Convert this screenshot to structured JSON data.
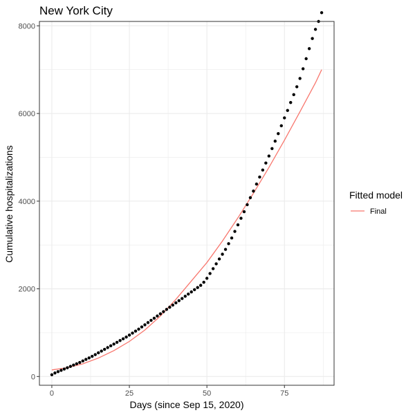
{
  "chart_data": {
    "type": "scatter",
    "title": "New York City",
    "xlabel": "Days (since Sep 15, 2020)",
    "ylabel": "Cumulative hospitalizations",
    "xlim": [
      -4,
      91
    ],
    "ylim": [
      -200,
      8100
    ],
    "x_ticks": [
      0,
      25,
      50,
      75
    ],
    "y_ticks": [
      0,
      2000,
      4000,
      6000,
      8000
    ],
    "grid": true,
    "legend": {
      "title": "Fitted model",
      "placement": "right",
      "entries": [
        {
          "label": "Final",
          "color": "#F8766D"
        }
      ]
    },
    "colors": {
      "points": "#000000",
      "fit": "#F8766D",
      "panel_border": "#333333",
      "grid": "#ebebeb"
    },
    "series": [
      {
        "kind": "points",
        "x": [
          0,
          1,
          2,
          3,
          4,
          5,
          6,
          7,
          8,
          9,
          10,
          11,
          12,
          13,
          14,
          15,
          16,
          17,
          18,
          19,
          20,
          21,
          22,
          23,
          24,
          25,
          26,
          27,
          28,
          29,
          30,
          31,
          32,
          33,
          34,
          35,
          36,
          37,
          38,
          39,
          40,
          41,
          42,
          43,
          44,
          45,
          46,
          47,
          48,
          49,
          50,
          51,
          52,
          53,
          54,
          55,
          56,
          57,
          58,
          59,
          60,
          61,
          62,
          63,
          64,
          65,
          66,
          67,
          68,
          69,
          70,
          71,
          72,
          73,
          74,
          75,
          76,
          77,
          78,
          79,
          80,
          81,
          82,
          83,
          84,
          85,
          86,
          87
        ],
        "y": [
          40,
          80,
          110,
          140,
          170,
          200,
          230,
          260,
          290,
          320,
          355,
          390,
          425,
          460,
          500,
          540,
          580,
          620,
          660,
          700,
          740,
          780,
          820,
          860,
          900,
          945,
          990,
          1035,
          1080,
          1130,
          1180,
          1230,
          1280,
          1330,
          1380,
          1430,
          1480,
          1530,
          1580,
          1630,
          1680,
          1730,
          1780,
          1830,
          1880,
          1930,
          1980,
          2030,
          2080,
          2150,
          2240,
          2350,
          2460,
          2570,
          2680,
          2790,
          2900,
          3030,
          3160,
          3310,
          3460,
          3610,
          3760,
          3920,
          4080,
          4230,
          4390,
          4550,
          4710,
          4870,
          5030,
          5200,
          5370,
          5540,
          5720,
          5900,
          6070,
          6250,
          6430,
          6610,
          6800,
          7020,
          7250,
          7480,
          7710,
          7920,
          8100,
          8300
        ]
      },
      {
        "kind": "line",
        "name": "Final",
        "x": [
          0,
          5,
          10,
          15,
          20,
          25,
          30,
          35,
          40,
          45,
          50,
          55,
          60,
          65,
          70,
          75,
          80,
          85,
          87
        ],
        "y": [
          150,
          200,
          290,
          420,
          590,
          800,
          1060,
          1380,
          1760,
          2180,
          2600,
          3090,
          3620,
          4180,
          4770,
          5390,
          6040,
          6700,
          7000
        ]
      }
    ]
  }
}
